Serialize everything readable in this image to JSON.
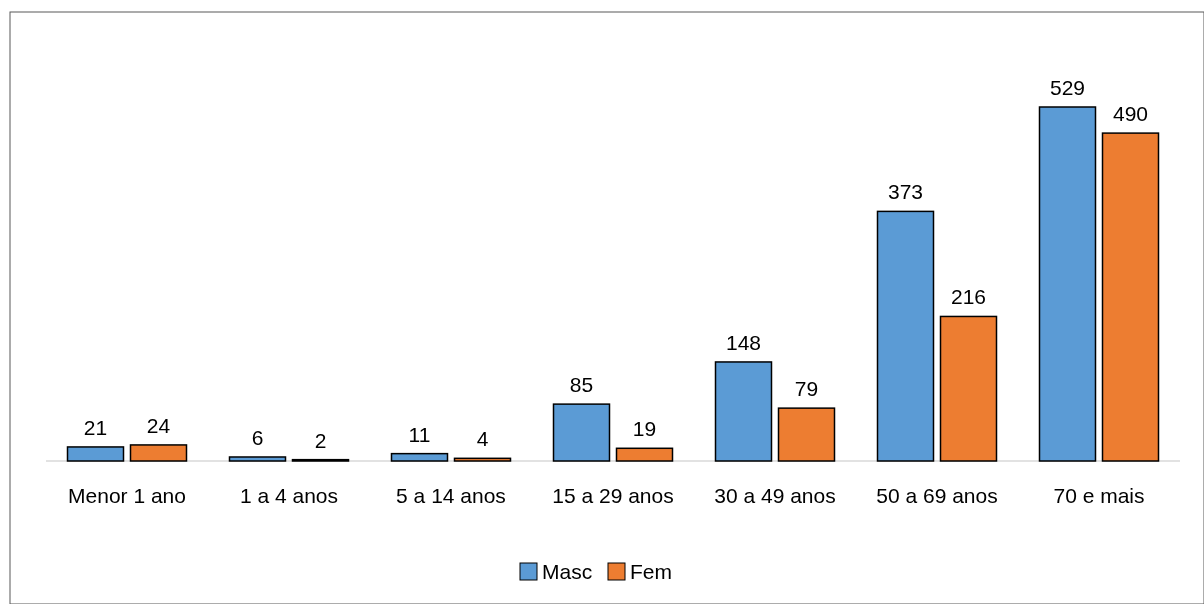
{
  "chart_data": {
    "type": "bar",
    "categories": [
      "Menor 1 ano",
      "1 a 4 anos",
      "5 a 14 anos",
      "15 a 29 anos",
      "30 a 49 anos",
      "50 a 69 anos",
      "70 e mais"
    ],
    "series": [
      {
        "name": "Masc",
        "color": "#5b9bd5",
        "values": [
          21,
          6,
          11,
          85,
          148,
          373,
          529
        ]
      },
      {
        "name": "Fem",
        "color": "#ed7d31",
        "values": [
          24,
          2,
          4,
          19,
          79,
          216,
          490
        ]
      }
    ],
    "data_labels": true,
    "legend": "bottom"
  }
}
